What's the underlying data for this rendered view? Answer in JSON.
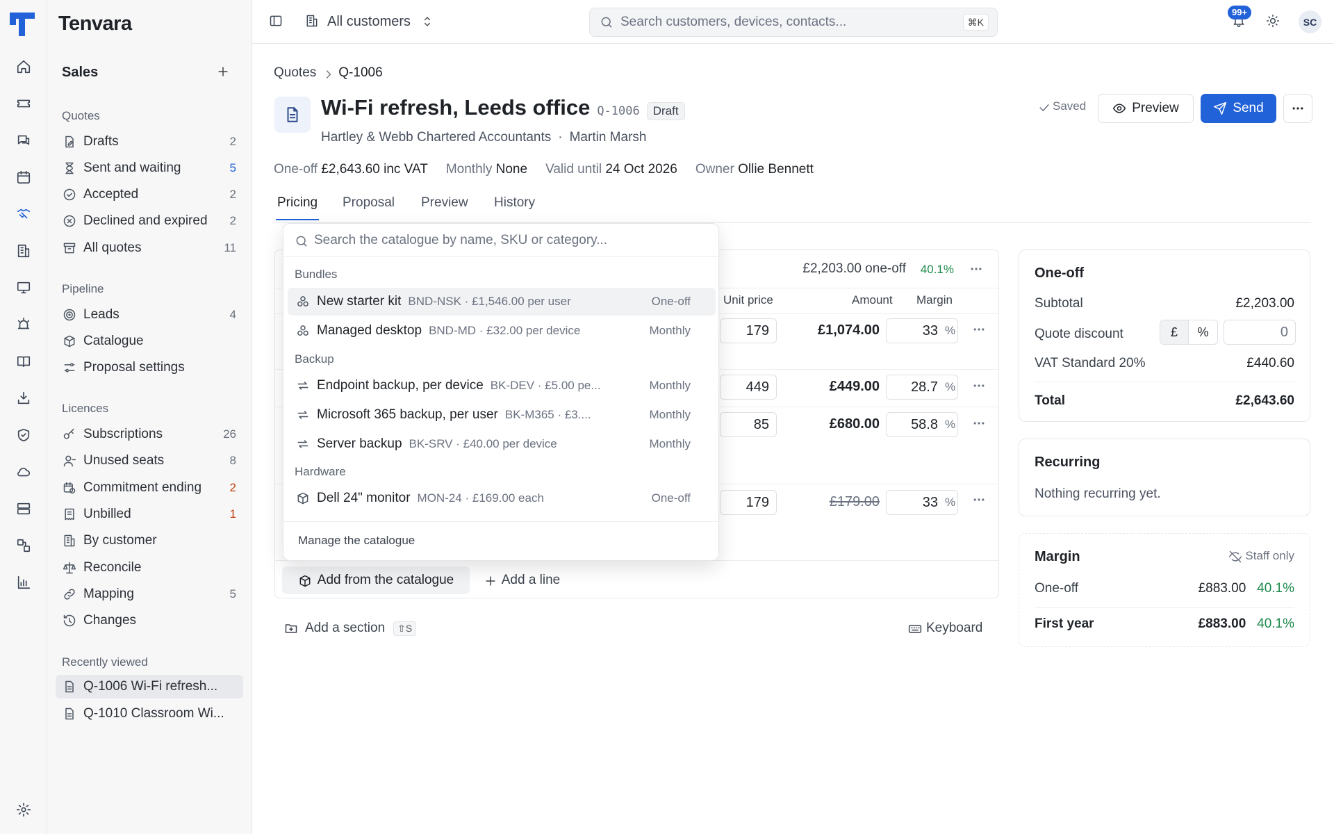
{
  "app": {
    "brand": "Tenvara"
  },
  "sidebar": {
    "section_title": "Sales",
    "groups": [
      {
        "title": "Quotes",
        "items": [
          {
            "label": "Drafts",
            "count": "2",
            "icon": "file-pen-icon"
          },
          {
            "label": "Sent and waiting",
            "count": "5",
            "icon": "hourglass-icon"
          },
          {
            "label": "Accepted",
            "count": "2",
            "icon": "check-circle-icon"
          },
          {
            "label": "Declined and expired",
            "count": "2",
            "icon": "x-circle-icon"
          },
          {
            "label": "All quotes",
            "count": "11",
            "icon": "archive-icon"
          }
        ]
      },
      {
        "title": "Pipeline",
        "items": [
          {
            "label": "Leads",
            "count": "4",
            "icon": "target-icon"
          },
          {
            "label": "Catalogue",
            "count": "",
            "icon": "box-icon"
          },
          {
            "label": "Proposal settings",
            "count": "",
            "icon": "sliders-icon"
          }
        ]
      },
      {
        "title": "Licences",
        "items": [
          {
            "label": "Subscriptions",
            "count": "26",
            "icon": "key-icon"
          },
          {
            "label": "Unused seats",
            "count": "8",
            "icon": "user-minus-icon"
          },
          {
            "label": "Commitment ending",
            "count": "2",
            "icon": "calendar-clock-icon"
          },
          {
            "label": "Unbilled",
            "count": "1",
            "icon": "receipt-icon"
          },
          {
            "label": "By customer",
            "count": "",
            "icon": "building-icon"
          },
          {
            "label": "Reconcile",
            "count": "",
            "icon": "scale-icon"
          },
          {
            "label": "Mapping",
            "count": "5",
            "icon": "link-icon"
          },
          {
            "label": "Changes",
            "count": "",
            "icon": "history-icon"
          }
        ]
      },
      {
        "title": "Recently viewed",
        "items": [
          {
            "label": "Q-1006 Wi-Fi refresh...",
            "count": "",
            "icon": "file-icon"
          },
          {
            "label": "Q-1010 Classroom Wi...",
            "count": "",
            "icon": "file-icon"
          }
        ]
      }
    ]
  },
  "topbar": {
    "customer_selector": "All customers",
    "search_placeholder": "Search customers, devices, contacts...",
    "shortcut": "⌘K",
    "notifications_badge": "99+",
    "avatar": "SC"
  },
  "breadcrumb": {
    "parent": "Quotes",
    "current": "Q-1006"
  },
  "quote": {
    "title": "Wi-Fi refresh, Leeds office",
    "code": "Q-1006",
    "status": "Draft",
    "customer": "Hartley & Webb Chartered Accountants",
    "separator": "·",
    "contact": "Martin Marsh",
    "saved": "Saved",
    "preview_button": "Preview",
    "send_button": "Send",
    "meta": [
      {
        "label": "One-off",
        "value": "£2,643.60 inc VAT"
      },
      {
        "label": "Monthly",
        "value": "None"
      },
      {
        "label": "Valid until",
        "value": "24 Oct 2026"
      },
      {
        "label": "Owner",
        "value": "Ollie Bennett"
      }
    ]
  },
  "tabs": [
    "Pricing",
    "Proposal",
    "Preview",
    "History"
  ],
  "pricing": {
    "section_total": "£2,203.00 one-off",
    "section_margin": "40.1%",
    "columns": {
      "unit_price": "Unit price",
      "amount": "Amount",
      "margin": "Margin"
    },
    "rows": [
      {
        "unit_price": "179",
        "amount": "£1,074.00",
        "margin": "33",
        "struck": false
      },
      {
        "unit_price": "449",
        "amount": "£449.00",
        "margin": "28.7",
        "struck": false
      },
      {
        "unit_price": "85",
        "amount": "£680.00",
        "margin": "58.8",
        "struck": false
      },
      {
        "unit_price": "179",
        "amount": "£179.00",
        "margin": "33",
        "struck": true
      }
    ],
    "pct": "%",
    "add_from_catalogue": "Add from the catalogue",
    "add_line": "Add a line",
    "add_section": "Add a section",
    "add_section_shortcut": "⇧S",
    "keyboard": "Keyboard"
  },
  "catalogue_dropdown": {
    "search_placeholder": "Search the catalogue by name, SKU or category...",
    "groups": [
      {
        "title": "Bundles",
        "items": [
          {
            "name": "New starter kit",
            "meta": "BND-NSK · £1,546.00 per user",
            "freq": "One-off",
            "icon": "bundle-icon"
          },
          {
            "name": "Managed desktop",
            "meta": "BND-MD · £32.00 per device",
            "freq": "Monthly",
            "icon": "bundle-icon"
          }
        ]
      },
      {
        "title": "Backup",
        "items": [
          {
            "name": "Endpoint backup, per device",
            "meta": "BK-DEV · £5.00 pe...",
            "freq": "Monthly",
            "icon": "repeat-icon"
          },
          {
            "name": "Microsoft 365 backup, per user",
            "meta": "BK-M365 · £3....",
            "freq": "Monthly",
            "icon": "repeat-icon"
          },
          {
            "name": "Server backup",
            "meta": "BK-SRV · £40.00 per device",
            "freq": "Monthly",
            "icon": "repeat-icon"
          }
        ]
      },
      {
        "title": "Hardware",
        "items": [
          {
            "name": "Dell 24\" monitor",
            "meta": "MON-24 · £169.00 each",
            "freq": "One-off",
            "icon": "box-icon"
          }
        ]
      }
    ],
    "manage": "Manage the catalogue"
  },
  "summary": {
    "oneoff": {
      "title": "One-off",
      "subtotal_label": "Subtotal",
      "subtotal": "£2,203.00",
      "discount_label": "Quote discount",
      "currency_toggle": "£",
      "percent_toggle": "%",
      "discount_value": "0",
      "vat_label": "VAT Standard 20%",
      "vat": "£440.60",
      "total_label": "Total",
      "total": "£2,643.60"
    },
    "recurring": {
      "title": "Recurring",
      "empty": "Nothing recurring yet."
    },
    "margin": {
      "title": "Margin",
      "staff_only": "Staff only",
      "oneoff_label": "One-off",
      "oneoff_value": "£883.00",
      "oneoff_pct": "40.1%",
      "firstyear_label": "First year",
      "firstyear_value": "£883.00",
      "firstyear_pct": "40.1%"
    }
  },
  "colors": {
    "accent": "#2262d8",
    "green": "#1f8a4c",
    "orange": "#c2410c"
  }
}
